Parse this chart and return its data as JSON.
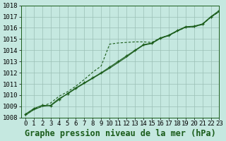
{
  "xlabel": "Graphe pression niveau de la mer (hPa)",
  "xlim": [
    -0.5,
    23
  ],
  "ylim": [
    1008,
    1018
  ],
  "yticks": [
    1008,
    1009,
    1010,
    1011,
    1012,
    1013,
    1014,
    1015,
    1016,
    1017,
    1018
  ],
  "xticks": [
    0,
    1,
    2,
    3,
    4,
    5,
    6,
    7,
    8,
    9,
    10,
    11,
    12,
    13,
    14,
    15,
    16,
    17,
    18,
    19,
    20,
    21,
    22,
    23
  ],
  "background_color": "#c5e8e0",
  "grid_color": "#9bbfb5",
  "line_color": "#1a5c1a",
  "series_main": [
    1008.3,
    1008.8,
    1009.1,
    1009.05,
    1009.6,
    1010.15,
    1010.65,
    1011.1,
    1011.55,
    1012.0,
    1012.5,
    1013.0,
    1013.5,
    1014.0,
    1014.5,
    1014.65,
    1015.1,
    1015.35,
    1015.75,
    1016.1,
    1016.15,
    1016.35,
    1017.0,
    1017.55
  ],
  "series_dotted": [
    1008.25,
    1008.75,
    1009.0,
    1009.3,
    1009.9,
    1010.3,
    1010.8,
    1011.4,
    1012.05,
    1012.6,
    1014.55,
    1014.65,
    1014.7,
    1014.75,
    1014.75,
    1014.7,
    1015.1,
    1015.3,
    1015.7,
    1016.05,
    1016.1,
    1016.3,
    1016.95,
    1017.45
  ],
  "series_smooth": [
    1008.2,
    1008.7,
    1009.0,
    1009.1,
    1009.7,
    1010.1,
    1010.6,
    1011.05,
    1011.5,
    1011.95,
    1012.4,
    1012.9,
    1013.4,
    1013.95,
    1014.45,
    1014.6,
    1015.05,
    1015.3,
    1015.7,
    1016.05,
    1016.1,
    1016.3,
    1016.95,
    1017.45
  ],
  "font_family": "monospace",
  "title_fontsize": 8.5,
  "tick_fontsize": 6.5,
  "title_fontweight": "bold"
}
